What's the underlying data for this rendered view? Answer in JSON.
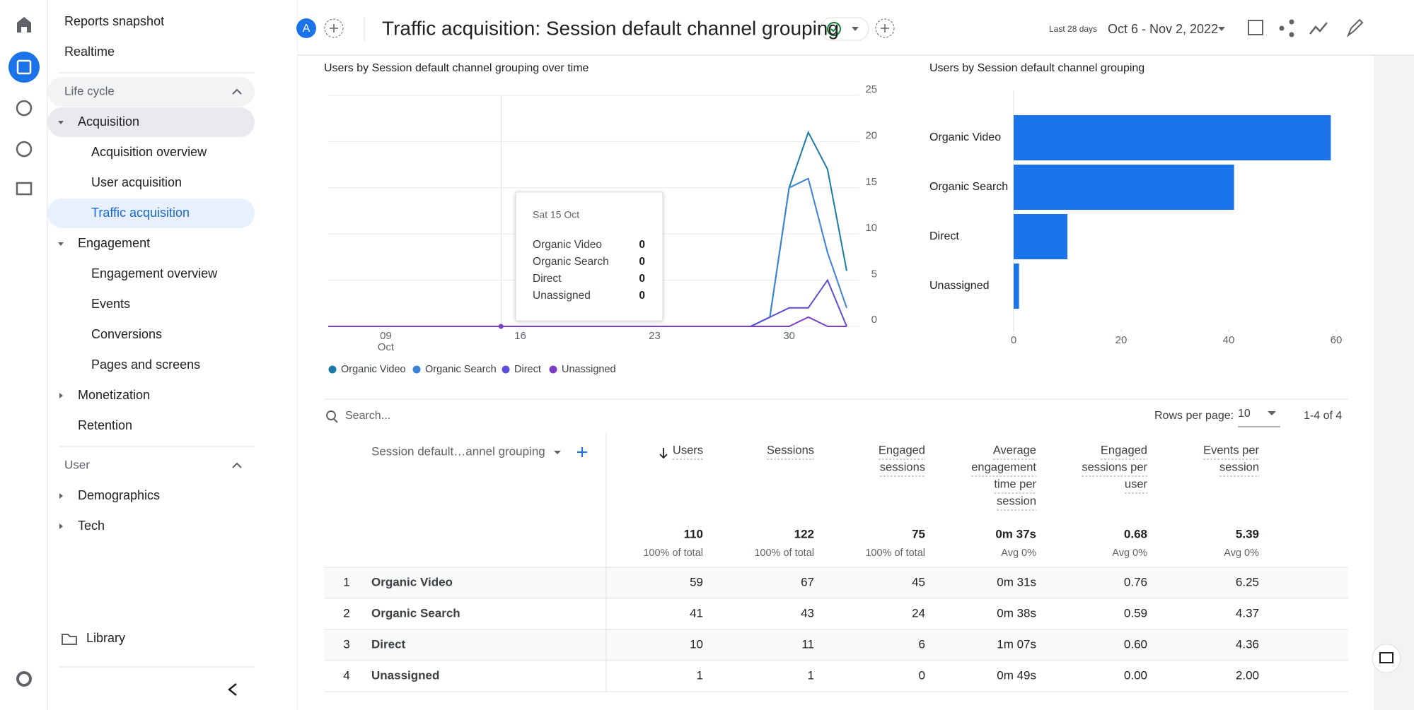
{
  "header": {
    "avatar": "A",
    "title": "Traffic acquisition: Session default channel grouping",
    "date_label": "Last 28 days",
    "date_range": "Oct 6 - Nov 2, 2022"
  },
  "sidebar": {
    "links": [
      "Reports snapshot",
      "Realtime"
    ],
    "sections": [
      {
        "title": "Life cycle",
        "groups": [
          {
            "label": "Acquisition",
            "expanded": true,
            "active": true,
            "items": [
              {
                "label": "Acquisition overview"
              },
              {
                "label": "User acquisition"
              },
              {
                "label": "Traffic acquisition",
                "selected": true
              }
            ]
          },
          {
            "label": "Engagement",
            "expanded": true,
            "items": [
              {
                "label": "Engagement overview"
              },
              {
                "label": "Events"
              },
              {
                "label": "Conversions"
              },
              {
                "label": "Pages and screens"
              }
            ]
          },
          {
            "label": "Monetization",
            "expanded": false
          },
          {
            "label": "Retention"
          }
        ]
      },
      {
        "title": "User",
        "groups": [
          {
            "label": "Demographics",
            "expanded": false
          },
          {
            "label": "Tech",
            "expanded": false
          }
        ]
      }
    ],
    "footer": "Library"
  },
  "line_chart": {
    "type": "line",
    "title": "Users by Session default channel grouping over time",
    "categories": [
      null,
      null,
      null,
      "09",
      null,
      null,
      null,
      null,
      null,
      null,
      "16",
      null,
      null,
      null,
      null,
      null,
      null,
      "23",
      null,
      null,
      null,
      null,
      null,
      null,
      "30",
      null,
      null,
      null
    ],
    "x_month_label": "Oct",
    "series": [
      {
        "name": "Organic Video",
        "color": "#1a7aa8",
        "values": [
          0,
          0,
          0,
          0,
          0,
          0,
          0,
          0,
          0,
          0,
          0,
          0,
          0,
          0,
          0,
          0,
          0,
          0,
          0,
          0,
          0,
          0,
          0,
          1,
          15,
          21,
          17,
          6
        ]
      },
      {
        "name": "Organic Search",
        "color": "#3b82d6",
        "values": [
          0,
          0,
          0,
          0,
          0,
          0,
          0,
          0,
          0,
          0,
          0,
          0,
          0,
          0,
          0,
          0,
          0,
          0,
          0,
          0,
          0,
          0,
          0,
          1,
          15,
          16,
          8,
          2
        ]
      },
      {
        "name": "Direct",
        "color": "#5a4fd6",
        "values": [
          0,
          0,
          0,
          0,
          0,
          0,
          0,
          0,
          0,
          0,
          0,
          0,
          0,
          0,
          0,
          0,
          0,
          0,
          0,
          0,
          0,
          0,
          0,
          1,
          2,
          2,
          5,
          0
        ]
      },
      {
        "name": "Unassigned",
        "color": "#7b3fc4",
        "values": [
          0,
          0,
          0,
          0,
          0,
          0,
          0,
          0,
          0,
          0,
          0,
          0,
          0,
          0,
          0,
          0,
          0,
          0,
          0,
          0,
          0,
          0,
          0,
          0,
          0,
          1,
          0,
          0
        ]
      }
    ],
    "ylim": [
      0,
      25
    ],
    "yticks": [
      0,
      5,
      10,
      15,
      20,
      25
    ],
    "grid": true,
    "tooltip": {
      "title": "Sat 15 Oct",
      "rows": [
        {
          "label": "Organic Video",
          "value": 0
        },
        {
          "label": "Organic Search",
          "value": 0
        },
        {
          "label": "Direct",
          "value": 0
        },
        {
          "label": "Unassigned",
          "value": 0
        }
      ]
    }
  },
  "bar_chart": {
    "type": "bar",
    "title": "Users by Session default channel grouping",
    "categories": [
      "Organic Video",
      "Organic Search",
      "Direct",
      "Unassigned"
    ],
    "values": [
      59,
      41,
      10,
      1
    ],
    "color": "#1a73e8",
    "xlim": [
      0,
      60
    ],
    "xticks": [
      0,
      20,
      40,
      60
    ]
  },
  "table": {
    "search_placeholder": "Search...",
    "rows_per_page_label": "Rows per page:",
    "rows_per_page": 10,
    "pagination": "1-4 of 4",
    "dimension_header": "Session default…annel grouping",
    "columns": [
      {
        "header": [
          "Users"
        ],
        "total": 110,
        "total_note": "100% of total"
      },
      {
        "header": [
          "Sessions"
        ],
        "total": 122,
        "total_note": "100% of total"
      },
      {
        "header": [
          "Engaged",
          "sessions"
        ],
        "total": 75,
        "total_note": "100% of total"
      },
      {
        "header": [
          "Average",
          "engagement",
          "time per",
          "session"
        ],
        "total": "0m 37s",
        "total_note": "Avg 0%"
      },
      {
        "header": [
          "Engaged",
          "sessions per",
          "user"
        ],
        "total": "0.68",
        "total_note": "Avg 0%"
      },
      {
        "header": [
          "Events per",
          "session"
        ],
        "total": "5.39",
        "total_note": "Avg 0%"
      }
    ],
    "rows": [
      {
        "index": 1,
        "name": "Organic Video",
        "cells": [
          59,
          67,
          45,
          "0m 31s",
          "0.76",
          "6.25"
        ]
      },
      {
        "index": 2,
        "name": "Organic Search",
        "cells": [
          41,
          43,
          24,
          "0m 38s",
          "0.59",
          "4.37"
        ]
      },
      {
        "index": 3,
        "name": "Direct",
        "cells": [
          10,
          11,
          6,
          "1m 07s",
          "0.60",
          "4.36"
        ]
      },
      {
        "index": 4,
        "name": "Unassigned",
        "cells": [
          1,
          1,
          0,
          "0m 49s",
          "0.00",
          "2.00"
        ]
      }
    ]
  }
}
